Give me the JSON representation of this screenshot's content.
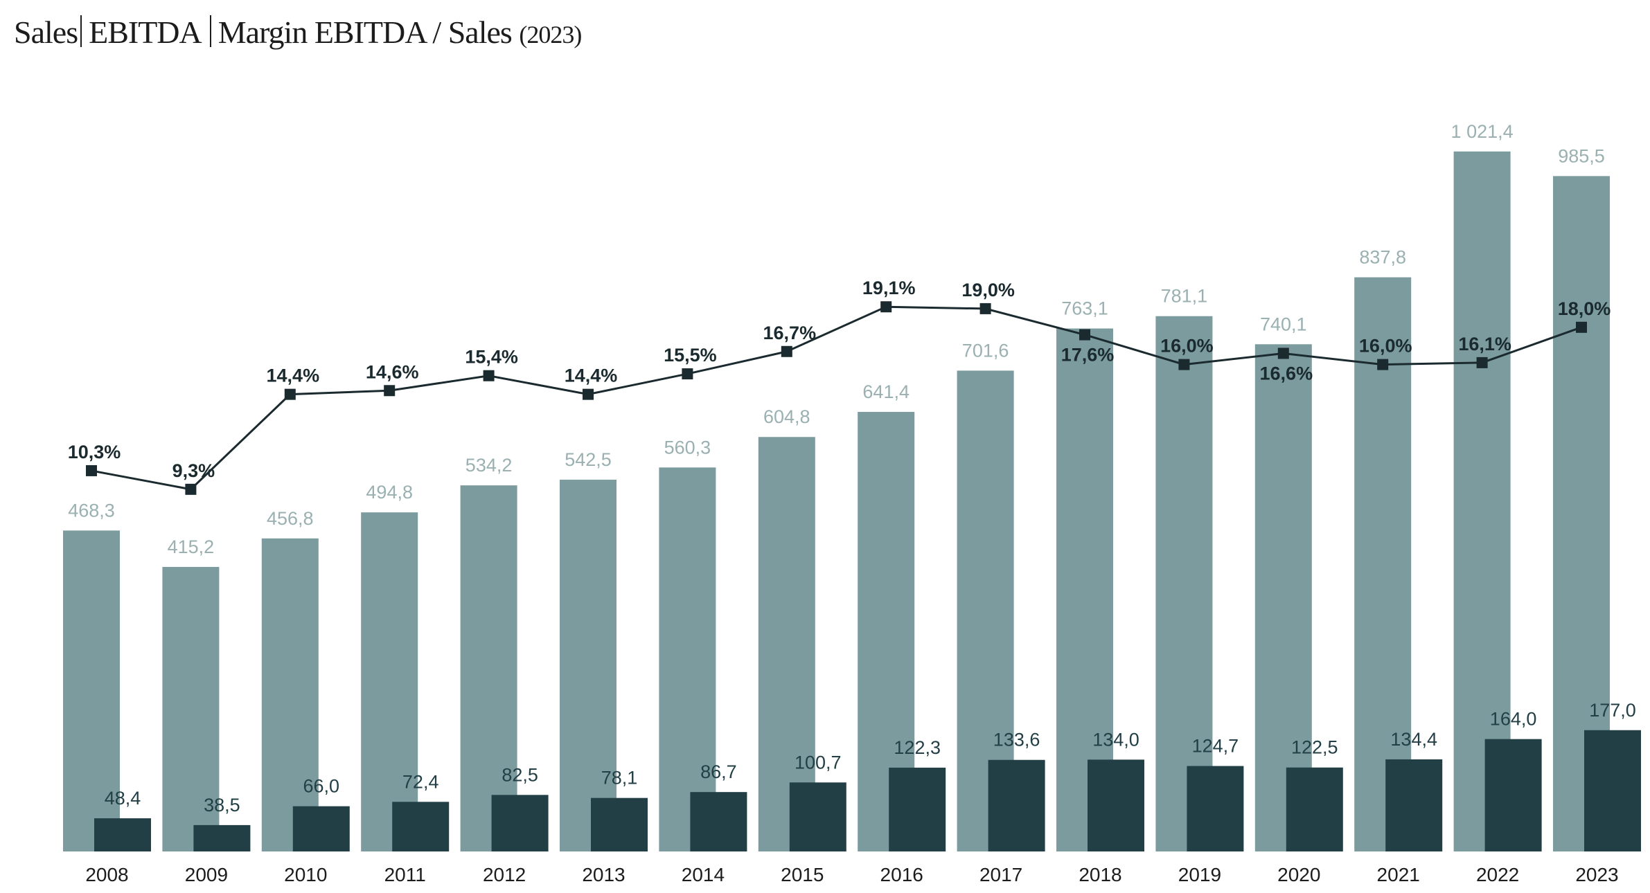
{
  "chart_data": {
    "type": "bar",
    "title": {
      "part1": "Sales",
      "part2": "EBITDA",
      "part3": "Margin EBITDA / Sales",
      "year": "(2023)"
    },
    "xlabel": "",
    "ylabel": "",
    "categories": [
      "2008",
      "2009",
      "2010",
      "2011",
      "2012",
      "2013",
      "2014",
      "2015",
      "2016",
      "2017",
      "2018",
      "2019",
      "2020",
      "2021",
      "2022",
      "2023"
    ],
    "series": [
      {
        "name": "Sales",
        "type": "bar",
        "color": "#7b9b9e",
        "label_color": "#9ab0b1",
        "values": [
          468.3,
          415.2,
          456.8,
          494.8,
          534.2,
          542.5,
          560.3,
          604.8,
          641.4,
          701.6,
          763.1,
          781.1,
          740.1,
          837.8,
          1021.4,
          985.5
        ],
        "labels": [
          "468,3",
          "415,2",
          "456,8",
          "494,8",
          "534,2",
          "542,5",
          "560,3",
          "604,8",
          "641,4",
          "701,6",
          "763,1",
          "781,1",
          "740,1",
          "837,8",
          "1 021,4",
          "985,5"
        ]
      },
      {
        "name": "EBITDA",
        "type": "bar",
        "color": "#233f46",
        "label_color": "#233f46",
        "values": [
          48.4,
          38.5,
          66.0,
          72.4,
          82.5,
          78.1,
          86.7,
          100.7,
          122.3,
          133.6,
          134.0,
          124.7,
          122.5,
          134.4,
          164.0,
          177.0
        ],
        "labels": [
          "48,4",
          "38,5",
          "66,0",
          "72,4",
          "82,5",
          "78,1",
          "86,7",
          "100,7",
          "122,3",
          "133,6",
          "134,0",
          "124,7",
          "122,5",
          "134,4",
          "164,0",
          "177,0"
        ]
      },
      {
        "name": "Margin EBITDA / Sales",
        "type": "line",
        "color": "#1a2a2e",
        "values": [
          10.3,
          9.3,
          14.4,
          14.6,
          15.4,
          14.4,
          15.5,
          16.7,
          19.1,
          19.0,
          17.6,
          16.0,
          16.6,
          16.0,
          16.1,
          18.0
        ],
        "labels": [
          "10,3%",
          "9,3%",
          "14,4%",
          "14,6%",
          "15,4%",
          "14,4%",
          "15,5%",
          "16,7%",
          "19,1%",
          "19,0%",
          "17,6%",
          "16,0%",
          "16,6%",
          "16,0%",
          "16,1%",
          "18,0%"
        ]
      }
    ],
    "grid": false,
    "legend": "none"
  }
}
